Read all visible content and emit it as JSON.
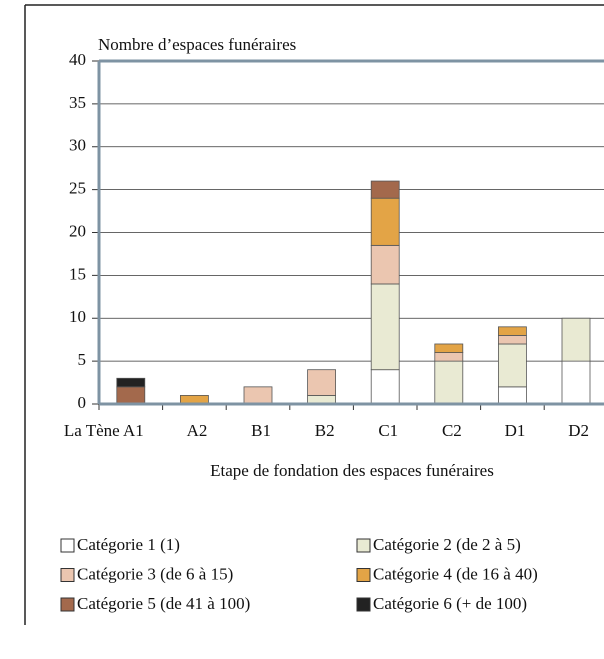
{
  "chart_data": {
    "type": "stacked_bar",
    "y_axis_label": "Nombre d’espaces funéraires",
    "x_axis_label": "Etape de fondation des espaces funéraires",
    "categories": [
      "La Tène A1",
      "A2",
      "B1",
      "B2",
      "C1",
      "C2",
      "D1",
      "D2"
    ],
    "series": [
      {
        "name": "Catégorie 1 (1)",
        "color": "#ffffff",
        "values": [
          0,
          0,
          0,
          0,
          4,
          0,
          2,
          5
        ]
      },
      {
        "name": "Catégorie 2 (de 2 à 5)",
        "color": "#e9ead3",
        "values": [
          0,
          0,
          0,
          1,
          10,
          5,
          5,
          5
        ]
      },
      {
        "name": "Catégorie 3 (de 6 à 15)",
        "color": "#ebc6b0",
        "values": [
          0,
          0,
          2,
          3,
          4.5,
          1,
          1,
          0
        ]
      },
      {
        "name": "Catégorie 4 (de 16 à 40)",
        "color": "#e3a446",
        "values": [
          0,
          1,
          0,
          0,
          5.5,
          1,
          1,
          0
        ]
      },
      {
        "name": "Catégorie 5 (de 41 à 100)",
        "color": "#a3694c",
        "values": [
          2,
          0,
          0,
          0,
          2,
          0,
          0,
          0
        ]
      },
      {
        "name": "Catégorie 6 (+ de 100)",
        "color": "#222222",
        "values": [
          1,
          0,
          0,
          0,
          0,
          0,
          0,
          0
        ]
      }
    ],
    "ylim": [
      0,
      40
    ],
    "yticks": [
      0,
      5,
      10,
      15,
      20,
      25,
      30,
      35,
      40
    ],
    "grid": true
  }
}
